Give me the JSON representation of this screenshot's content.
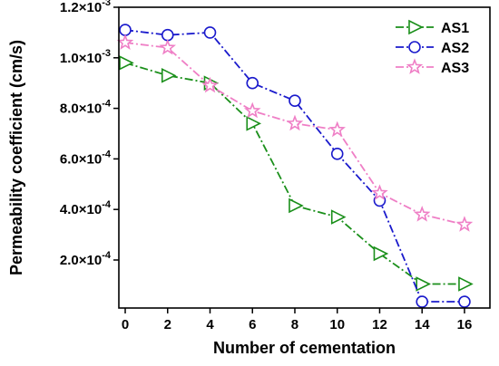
{
  "chart_data": {
    "type": "line",
    "title": "",
    "xlabel": "Number of cementation",
    "ylabel": "Permeability coefficient (cm/s)",
    "x": [
      0,
      2,
      4,
      6,
      8,
      10,
      12,
      14,
      16
    ],
    "xlim": [
      -0.3,
      17.2
    ],
    "ylim": [
      1e-05,
      0.0012
    ],
    "x_ticks": [
      0,
      2,
      4,
      6,
      8,
      10,
      12,
      14,
      16
    ],
    "x_tick_labels": [
      "0",
      "2",
      "4",
      "6",
      "8",
      "10",
      "12",
      "14",
      "16"
    ],
    "y_ticks": [
      0.0002,
      0.0004,
      0.0006,
      0.0008,
      0.001,
      0.0012
    ],
    "y_tick_labels": [
      {
        "mantissa": "2.0",
        "exp": "-4"
      },
      {
        "mantissa": "4.0",
        "exp": "-4"
      },
      {
        "mantissa": "6.0",
        "exp": "-4"
      },
      {
        "mantissa": "8.0",
        "exp": "-4"
      },
      {
        "mantissa": "1.0",
        "exp": "-3"
      },
      {
        "mantissa": "1.2",
        "exp": "-3"
      }
    ],
    "tick_times": "×10",
    "grid": false,
    "legend_position": "top-right",
    "series": [
      {
        "name": "AS1",
        "color": "#1a8f1a",
        "marker": "triangle-right",
        "dash": "dash-dot",
        "values": [
          0.00098,
          0.00093,
          0.0009,
          0.00074,
          0.000415,
          0.00037,
          0.000225,
          0.000105,
          0.000105
        ]
      },
      {
        "name": "AS2",
        "color": "#1a1acc",
        "marker": "circle",
        "dash": "dash-dot",
        "values": [
          0.00111,
          0.00109,
          0.0011,
          0.0009,
          0.00083,
          0.00062,
          0.000435,
          3.5e-05,
          3.5e-05
        ]
      },
      {
        "name": "AS3",
        "color": "#ef7fc6",
        "marker": "star",
        "dash": "dash-dot",
        "values": [
          0.00106,
          0.00104,
          0.00089,
          0.00079,
          0.00074,
          0.000715,
          0.000465,
          0.00038,
          0.00034
        ]
      }
    ]
  }
}
